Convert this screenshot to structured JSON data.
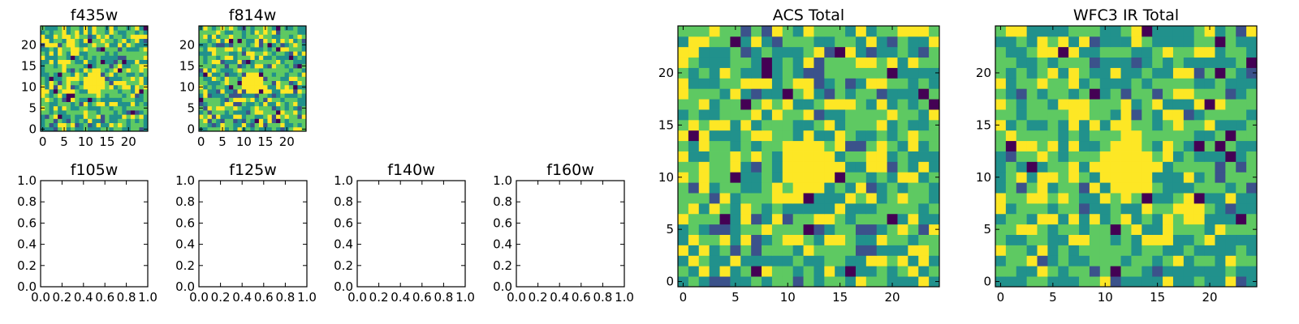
{
  "colormap": [
    "#440154",
    "#3b528b",
    "#21918c",
    "#5ec962",
    "#fde725"
  ],
  "chart_data": [
    {
      "type": "heatmap",
      "title": "f435w",
      "grid_size": 25,
      "seed": 11,
      "sparse_dark": true,
      "xlim": [
        -0.5,
        24.5
      ],
      "ylim": [
        -0.5,
        24.5
      ],
      "xticks": [
        0,
        5,
        10,
        15,
        20
      ],
      "yticks": [
        0,
        5,
        10,
        15,
        20
      ],
      "xtick_labels": [
        "0",
        "5",
        "10",
        "15",
        "20"
      ],
      "ytick_labels": [
        "0",
        "5",
        "10",
        "15",
        "20"
      ]
    },
    {
      "type": "heatmap",
      "title": "f814w",
      "grid_size": 25,
      "seed": 23,
      "sparse_dark": true,
      "xlim": [
        -0.5,
        24.5
      ],
      "ylim": [
        -0.5,
        24.5
      ],
      "xticks": [
        0,
        5,
        10,
        15,
        20
      ],
      "yticks": [
        0,
        5,
        10,
        15,
        20
      ],
      "xtick_labels": [
        "0",
        "5",
        "10",
        "15",
        "20"
      ],
      "ytick_labels": [
        "0",
        "5",
        "10",
        "15",
        "20"
      ]
    },
    {
      "type": "empty",
      "title": "f105w",
      "xlim": [
        0,
        1
      ],
      "ylim": [
        0,
        1
      ],
      "xtick_labels": [
        "0.0",
        "0.2",
        "0.4",
        "0.6",
        "0.8",
        "1.0"
      ],
      "ytick_labels": [
        "0.0",
        "0.2",
        "0.4",
        "0.6",
        "0.8",
        "1.0"
      ]
    },
    {
      "type": "empty",
      "title": "f125w",
      "xlim": [
        0,
        1
      ],
      "ylim": [
        0,
        1
      ],
      "xtick_labels": [
        "0.0",
        "0.2",
        "0.4",
        "0.6",
        "0.8",
        "1.0"
      ],
      "ytick_labels": [
        "0.0",
        "0.2",
        "0.4",
        "0.6",
        "0.8",
        "1.0"
      ]
    },
    {
      "type": "empty",
      "title": "f140w",
      "xlim": [
        0,
        1
      ],
      "ylim": [
        0,
        1
      ],
      "xtick_labels": [
        "0.0",
        "0.2",
        "0.4",
        "0.6",
        "0.8",
        "1.0"
      ],
      "ytick_labels": [
        "0.0",
        "0.2",
        "0.4",
        "0.6",
        "0.8",
        "1.0"
      ]
    },
    {
      "type": "empty",
      "title": "f160w",
      "xlim": [
        0,
        1
      ],
      "ylim": [
        0,
        1
      ],
      "xtick_labels": [
        "0.0",
        "0.2",
        "0.4",
        "0.6",
        "0.8",
        "1.0"
      ],
      "ytick_labels": [
        "0.0",
        "0.2",
        "0.4",
        "0.6",
        "0.8",
        "1.0"
      ]
    },
    {
      "type": "heatmap",
      "title": "ACS Total",
      "grid_size": 25,
      "seed": 37,
      "sparse_dark": true,
      "xlim": [
        -0.5,
        24.5
      ],
      "ylim": [
        -0.5,
        24.5
      ],
      "xticks": [
        0,
        5,
        10,
        15,
        20
      ],
      "yticks": [
        0,
        5,
        10,
        15,
        20
      ],
      "xtick_labels": [
        "0",
        "5",
        "10",
        "15",
        "20"
      ],
      "ytick_labels": [
        "0",
        "5",
        "10",
        "15",
        "20"
      ]
    },
    {
      "type": "heatmap",
      "title": "WFC3 IR Total",
      "grid_size": 25,
      "seed": 53,
      "sparse_dark": true,
      "xlim": [
        -0.5,
        24.5
      ],
      "ylim": [
        -0.5,
        24.5
      ],
      "xticks": [
        0,
        5,
        10,
        15,
        20
      ],
      "yticks": [
        0,
        5,
        10,
        15,
        20
      ],
      "xtick_labels": [
        "0",
        "5",
        "10",
        "15",
        "20"
      ],
      "ytick_labels": [
        "0",
        "5",
        "10",
        "15",
        "20"
      ]
    }
  ]
}
